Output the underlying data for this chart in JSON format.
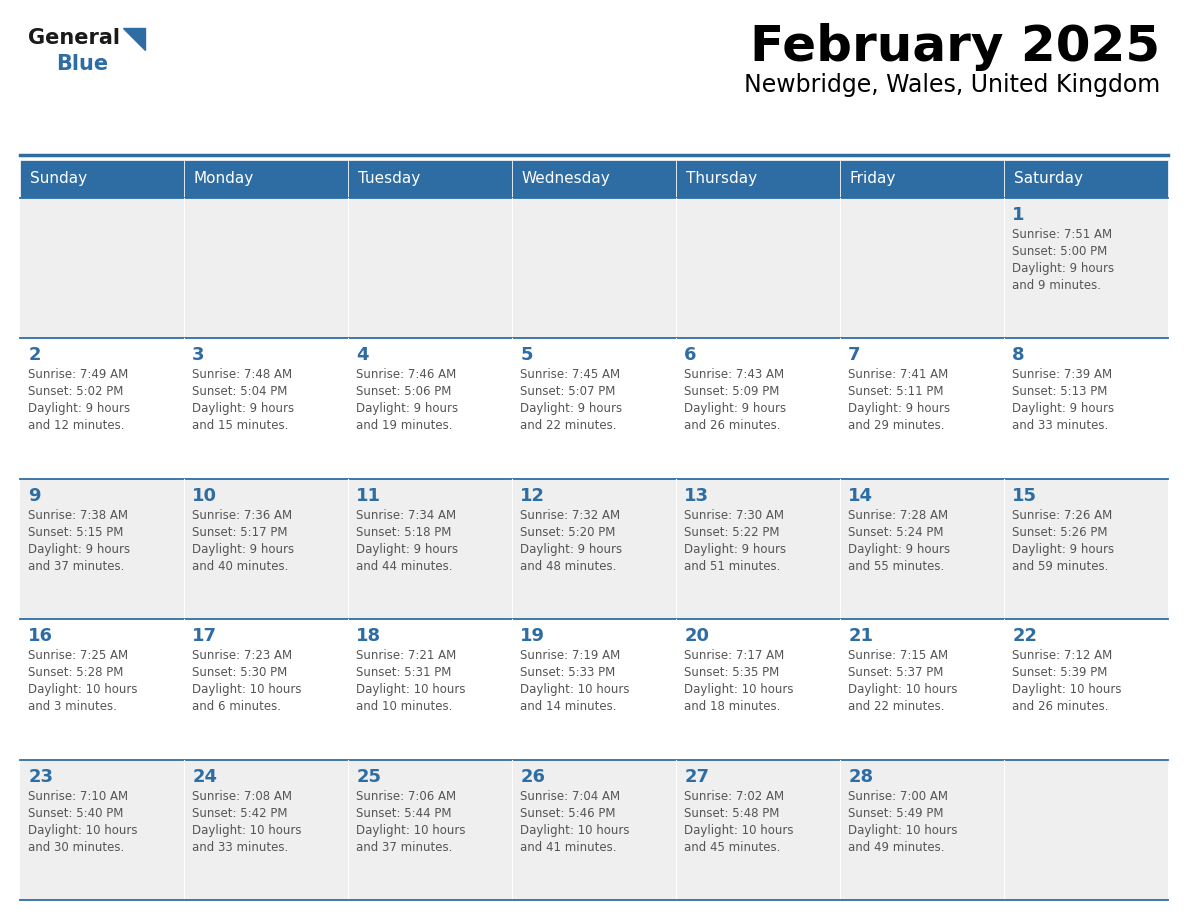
{
  "title": "February 2025",
  "subtitle": "Newbridge, Wales, United Kingdom",
  "header_bg": "#2E6DA4",
  "header_text_color": "#FFFFFF",
  "cell_bg_odd": "#EFEFEF",
  "cell_bg_even": "#FFFFFF",
  "text_color": "#555555",
  "number_color": "#2E6DA4",
  "line_color": "#2E6DA4",
  "logo_general_color": "#1a1a1a",
  "logo_blue_color": "#2E6DA4",
  "day_headers": [
    "Sunday",
    "Monday",
    "Tuesday",
    "Wednesday",
    "Thursday",
    "Friday",
    "Saturday"
  ],
  "calendar": [
    [
      null,
      null,
      null,
      null,
      null,
      null,
      {
        "day": "1",
        "sunrise": "7:51 AM",
        "sunset": "5:00 PM",
        "daylight": "9 hours",
        "daylight2": "and 9 minutes."
      }
    ],
    [
      {
        "day": "2",
        "sunrise": "7:49 AM",
        "sunset": "5:02 PM",
        "daylight": "9 hours",
        "daylight2": "and 12 minutes."
      },
      {
        "day": "3",
        "sunrise": "7:48 AM",
        "sunset": "5:04 PM",
        "daylight": "9 hours",
        "daylight2": "and 15 minutes."
      },
      {
        "day": "4",
        "sunrise": "7:46 AM",
        "sunset": "5:06 PM",
        "daylight": "9 hours",
        "daylight2": "and 19 minutes."
      },
      {
        "day": "5",
        "sunrise": "7:45 AM",
        "sunset": "5:07 PM",
        "daylight": "9 hours",
        "daylight2": "and 22 minutes."
      },
      {
        "day": "6",
        "sunrise": "7:43 AM",
        "sunset": "5:09 PM",
        "daylight": "9 hours",
        "daylight2": "and 26 minutes."
      },
      {
        "day": "7",
        "sunrise": "7:41 AM",
        "sunset": "5:11 PM",
        "daylight": "9 hours",
        "daylight2": "and 29 minutes."
      },
      {
        "day": "8",
        "sunrise": "7:39 AM",
        "sunset": "5:13 PM",
        "daylight": "9 hours",
        "daylight2": "and 33 minutes."
      }
    ],
    [
      {
        "day": "9",
        "sunrise": "7:38 AM",
        "sunset": "5:15 PM",
        "daylight": "9 hours",
        "daylight2": "and 37 minutes."
      },
      {
        "day": "10",
        "sunrise": "7:36 AM",
        "sunset": "5:17 PM",
        "daylight": "9 hours",
        "daylight2": "and 40 minutes."
      },
      {
        "day": "11",
        "sunrise": "7:34 AM",
        "sunset": "5:18 PM",
        "daylight": "9 hours",
        "daylight2": "and 44 minutes."
      },
      {
        "day": "12",
        "sunrise": "7:32 AM",
        "sunset": "5:20 PM",
        "daylight": "9 hours",
        "daylight2": "and 48 minutes."
      },
      {
        "day": "13",
        "sunrise": "7:30 AM",
        "sunset": "5:22 PM",
        "daylight": "9 hours",
        "daylight2": "and 51 minutes."
      },
      {
        "day": "14",
        "sunrise": "7:28 AM",
        "sunset": "5:24 PM",
        "daylight": "9 hours",
        "daylight2": "and 55 minutes."
      },
      {
        "day": "15",
        "sunrise": "7:26 AM",
        "sunset": "5:26 PM",
        "daylight": "9 hours",
        "daylight2": "and 59 minutes."
      }
    ],
    [
      {
        "day": "16",
        "sunrise": "7:25 AM",
        "sunset": "5:28 PM",
        "daylight": "10 hours",
        "daylight2": "and 3 minutes."
      },
      {
        "day": "17",
        "sunrise": "7:23 AM",
        "sunset": "5:30 PM",
        "daylight": "10 hours",
        "daylight2": "and 6 minutes."
      },
      {
        "day": "18",
        "sunrise": "7:21 AM",
        "sunset": "5:31 PM",
        "daylight": "10 hours",
        "daylight2": "and 10 minutes."
      },
      {
        "day": "19",
        "sunrise": "7:19 AM",
        "sunset": "5:33 PM",
        "daylight": "10 hours",
        "daylight2": "and 14 minutes."
      },
      {
        "day": "20",
        "sunrise": "7:17 AM",
        "sunset": "5:35 PM",
        "daylight": "10 hours",
        "daylight2": "and 18 minutes."
      },
      {
        "day": "21",
        "sunrise": "7:15 AM",
        "sunset": "5:37 PM",
        "daylight": "10 hours",
        "daylight2": "and 22 minutes."
      },
      {
        "day": "22",
        "sunrise": "7:12 AM",
        "sunset": "5:39 PM",
        "daylight": "10 hours",
        "daylight2": "and 26 minutes."
      }
    ],
    [
      {
        "day": "23",
        "sunrise": "7:10 AM",
        "sunset": "5:40 PM",
        "daylight": "10 hours",
        "daylight2": "and 30 minutes."
      },
      {
        "day": "24",
        "sunrise": "7:08 AM",
        "sunset": "5:42 PM",
        "daylight": "10 hours",
        "daylight2": "and 33 minutes."
      },
      {
        "day": "25",
        "sunrise": "7:06 AM",
        "sunset": "5:44 PM",
        "daylight": "10 hours",
        "daylight2": "and 37 minutes."
      },
      {
        "day": "26",
        "sunrise": "7:04 AM",
        "sunset": "5:46 PM",
        "daylight": "10 hours",
        "daylight2": "and 41 minutes."
      },
      {
        "day": "27",
        "sunrise": "7:02 AM",
        "sunset": "5:48 PM",
        "daylight": "10 hours",
        "daylight2": "and 45 minutes."
      },
      {
        "day": "28",
        "sunrise": "7:00 AM",
        "sunset": "5:49 PM",
        "daylight": "10 hours",
        "daylight2": "and 49 minutes."
      },
      null
    ]
  ]
}
